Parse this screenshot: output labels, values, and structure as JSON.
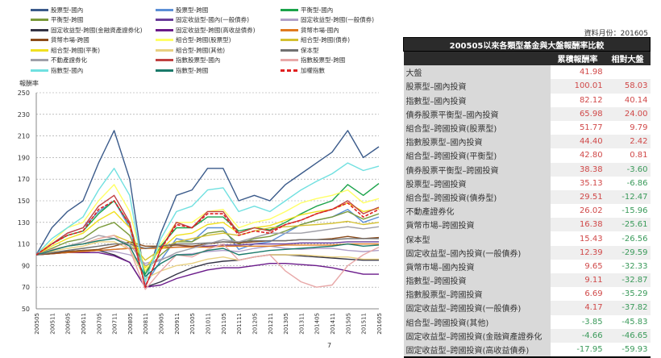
{
  "chart_data": {
    "type": "line",
    "ylabel": "報酬率",
    "ylim": [
      50,
      250
    ],
    "yticks": [
      50,
      70,
      90,
      110,
      130,
      150,
      170,
      190,
      210,
      230,
      250
    ],
    "grid": "horizontal dashed",
    "legend_position": "top",
    "x": [
      "200505",
      "200511",
      "200605",
      "200611",
      "200705",
      "200711",
      "200805",
      "200811",
      "200905",
      "200911",
      "201005",
      "201011",
      "201105",
      "201111",
      "201205",
      "201211",
      "201305",
      "201311",
      "201405",
      "201411",
      "201505",
      "201511",
      "201605"
    ],
    "series": [
      {
        "name": "股票型-國內",
        "color": "#3a5a8a",
        "values": [
          100,
          125,
          140,
          150,
          185,
          215,
          170,
          75,
          120,
          155,
          160,
          180,
          180,
          150,
          155,
          150,
          165,
          175,
          185,
          195,
          215,
          190,
          200
        ]
      },
      {
        "name": "股票型-跨國",
        "color": "#5b8fd6",
        "values": [
          100,
          110,
          120,
          125,
          140,
          150,
          125,
          72,
          95,
          115,
          112,
          125,
          125,
          105,
          110,
          112,
          120,
          128,
          132,
          135,
          142,
          130,
          135
        ]
      },
      {
        "name": "平衡型-國內",
        "color": "#1aa34a",
        "values": [
          100,
          110,
          118,
          122,
          138,
          150,
          128,
          82,
          108,
          125,
          125,
          135,
          135,
          122,
          125,
          123,
          130,
          138,
          145,
          150,
          165,
          155,
          166
        ]
      },
      {
        "name": "平衡型-跨國",
        "color": "#7a9a3a",
        "values": [
          100,
          106,
          112,
          115,
          125,
          130,
          118,
          85,
          100,
          112,
          112,
          120,
          122,
          110,
          115,
          117,
          122,
          128,
          132,
          135,
          140,
          133,
          138
        ]
      },
      {
        "name": "固定收益型-國內(一般債券)",
        "color": "#6a3d9a",
        "values": [
          100,
          101,
          102,
          103,
          104,
          105,
          106,
          106,
          107,
          107,
          108,
          108,
          109,
          109,
          110,
          110,
          110,
          111,
          111,
          111,
          112,
          112,
          112
        ]
      },
      {
        "name": "固定收益型-跨國(一般債券)",
        "color": "#b0a0c8",
        "values": [
          100,
          101,
          102,
          103,
          104,
          103,
          100,
          92,
          96,
          100,
          101,
          103,
          104,
          103,
          106,
          108,
          106,
          105,
          106,
          106,
          104,
          103,
          104
        ]
      },
      {
        "name": "固定收益型-跨國(金融資產證券化)",
        "color": "#333344",
        "values": [
          100,
          102,
          103,
          104,
          104,
          100,
          93,
          70,
          75,
          82,
          88,
          92,
          94,
          95,
          98,
          100,
          100,
          99,
          98,
          97,
          96,
          95,
          95
        ]
      },
      {
        "name": "固定收益型-跨國(高收益債券)",
        "color": "#6a1a8a",
        "values": [
          100,
          101,
          102,
          102,
          102,
          99,
          93,
          70,
          72,
          78,
          82,
          86,
          88,
          88,
          90,
          92,
          92,
          91,
          90,
          88,
          85,
          82,
          82
        ]
      },
      {
        "name": "貨幣市場-國內",
        "color": "#e07a20",
        "values": [
          100,
          101,
          102,
          103,
          104,
          105,
          106,
          106,
          106,
          107,
          107,
          107,
          108,
          108,
          108,
          108,
          109,
          109,
          109,
          109,
          110,
          110,
          110
        ]
      },
      {
        "name": "貨幣市場-跨國",
        "color": "#8a4a1a",
        "values": [
          100,
          101,
          103,
          104,
          105,
          108,
          112,
          108,
          108,
          109,
          108,
          110,
          112,
          111,
          112,
          113,
          113,
          114,
          114,
          115,
          117,
          115,
          116
        ]
      },
      {
        "name": "組合型-跨國(股票型)",
        "color": "#ffff66",
        "values": [
          100,
          112,
          125,
          130,
          150,
          165,
          140,
          85,
          110,
          130,
          130,
          140,
          142,
          125,
          130,
          133,
          140,
          148,
          152,
          155,
          160,
          148,
          152
        ]
      },
      {
        "name": "組合型-跨國(債券)",
        "color": "#d4c030",
        "values": [
          100,
          104,
          108,
          110,
          115,
          118,
          112,
          95,
          105,
          112,
          115,
          118,
          120,
          118,
          122,
          125,
          126,
          127,
          128,
          129,
          131,
          128,
          130
        ]
      },
      {
        "name": "組合型-跨國(平衡)",
        "color": "#f0e020",
        "values": [
          100,
          108,
          115,
          120,
          132,
          140,
          125,
          88,
          105,
          118,
          120,
          128,
          130,
          120,
          125,
          127,
          132,
          137,
          140,
          142,
          148,
          140,
          143
        ]
      },
      {
        "name": "組合型-跨國(其他)",
        "color": "#e8d080",
        "values": [
          100,
          103,
          106,
          108,
          112,
          112,
          105,
          78,
          85,
          90,
          92,
          96,
          98,
          95,
          98,
          100,
          100,
          100,
          99,
          98,
          98,
          96,
          96
        ]
      },
      {
        "name": "保本型",
        "color": "#707070",
        "values": [
          100,
          102,
          104,
          106,
          108,
          110,
          110,
          106,
          108,
          110,
          110,
          111,
          112,
          112,
          113,
          113,
          113,
          114,
          114,
          114,
          115,
          115,
          115
        ]
      },
      {
        "name": "不動產證券化",
        "color": "#a0a0a8",
        "values": [
          100,
          104,
          108,
          112,
          118,
          115,
          110,
          90,
          95,
          102,
          106,
          110,
          114,
          112,
          116,
          120,
          120,
          120,
          122,
          124,
          126,
          124,
          126
        ]
      },
      {
        "name": "指數股票型-國內",
        "color": "#c04040",
        "values": [
          100,
          110,
          120,
          125,
          145,
          155,
          130,
          70,
          105,
          130,
          125,
          140,
          140,
          120,
          125,
          122,
          128,
          132,
          138,
          142,
          150,
          138,
          144
        ]
      },
      {
        "name": "指數股票型-跨國",
        "color": "#e8a8a8",
        "values": [
          100,
          105,
          108,
          110,
          115,
          118,
          105,
          68,
          85,
          100,
          98,
          105,
          110,
          95,
          98,
          100,
          85,
          75,
          70,
          72,
          90,
          100,
          107
        ]
      },
      {
        "name": "指數型-國內",
        "color": "#70e0e0",
        "values": [
          100,
          115,
          125,
          135,
          160,
          180,
          155,
          75,
          115,
          140,
          145,
          160,
          162,
          140,
          145,
          140,
          150,
          160,
          168,
          175,
          185,
          178,
          182
        ]
      },
      {
        "name": "指數型-跨國",
        "color": "#1a7a6a",
        "values": [
          100,
          104,
          108,
          110,
          113,
          115,
          108,
          80,
          92,
          100,
          100,
          104,
          106,
          100,
          102,
          104,
          105,
          106,
          107,
          108,
          110,
          108,
          109
        ]
      },
      {
        "name": "加權指數",
        "color": "#e02020",
        "dashed": true,
        "values": [
          100,
          110,
          118,
          122,
          142,
          150,
          128,
          70,
          105,
          128,
          125,
          138,
          138,
          118,
          122,
          120,
          128,
          132,
          138,
          142,
          148,
          135,
          142
        ]
      }
    ]
  },
  "table": {
    "note": "資料月份：201605",
    "title": "200505以來各類型基金與大盤報酬率比較",
    "headers": [
      "",
      "累積報酬率",
      "相對大盤"
    ],
    "positive_color": "#d04848",
    "negative_color": "#3a9a5a",
    "rows": [
      [
        "大盤",
        "41.98",
        ""
      ],
      [
        "股票型–國內投資",
        "100.01",
        "58.03"
      ],
      [
        "指數型–國內投資",
        "82.12",
        "40.14"
      ],
      [
        "債券股票平衡型–國內投資",
        "65.98",
        "24.00"
      ],
      [
        "組合型–跨國投資(股票型)",
        "51.77",
        "9.79"
      ],
      [
        "指數股票型–國內投資",
        "44.40",
        "2.42"
      ],
      [
        "組合型–跨國投資(平衡型)",
        "42.80",
        "0.81"
      ],
      [
        "債券股票平衡型–跨國投資",
        "38.38",
        "-3.60"
      ],
      [
        "股票型–跨國投資",
        "35.13",
        "-6.86"
      ],
      [
        "組合型–跨國投資(債券型)",
        "29.51",
        "-12.47"
      ],
      [
        "不動產證券化",
        "26.02",
        "-15.96"
      ],
      [
        "貨幣市場–跨國投資",
        "16.38",
        "-25.61"
      ],
      [
        "保本型",
        "15.43",
        "-26.56"
      ],
      [
        "固定收益型–國內投資(一般債券)",
        "12.39",
        "-29.59"
      ],
      [
        "貨幣市場–國內投資",
        "9.65",
        "-32.33"
      ],
      [
        "指數型–跨國投資",
        "9.11",
        "-32.87"
      ],
      [
        "指數股票型–跨國投資",
        "6.69",
        "-35.29"
      ],
      [
        "固定收益型–跨國投資(一般債券)",
        "4.17",
        "-37.82"
      ],
      [
        "組合型–跨國投資(其他)",
        "-3.85",
        "-45.83"
      ],
      [
        "固定收益型–跨國投資(金融資產證券化",
        "-4.66",
        "-46.65"
      ],
      [
        "固定收益型–跨國投資(高收益債券)",
        "-17.95",
        "-59.93"
      ]
    ]
  },
  "page_number": "7"
}
